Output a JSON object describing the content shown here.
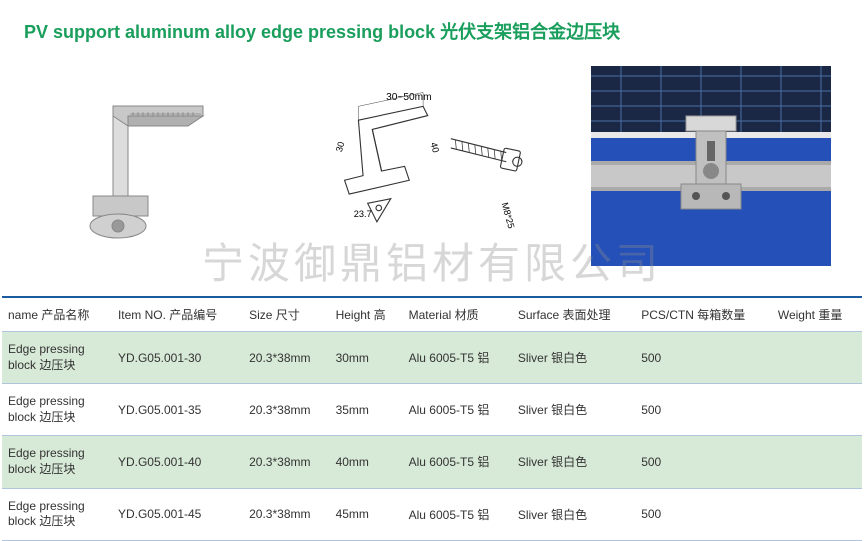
{
  "title": "PV support aluminum alloy edge pressing block  光伏支架铝合金边压块",
  "watermark": "宁波御鼎铝材有限公司",
  "colors": {
    "title_color": "#1a9e5c",
    "header_border": "#1a5c9e",
    "row_border": "#b0c4de",
    "row_odd_bg": "#d7e9d7",
    "row_even_bg": "#ffffff",
    "text_color": "#333333",
    "watermark_color": "rgba(140,140,140,0.35)"
  },
  "table": {
    "columns": [
      "name 产品名称",
      "Item NO. 产品编号",
      "Size 尺寸",
      "Height 高",
      "Material 材质",
      "Surface 表面处理",
      "PCS/CTN 每箱数量",
      "Weight 重量"
    ],
    "rows": [
      {
        "name": "Edge pressing block 边压块",
        "item_no": "YD.G05.001-30",
        "size": "20.3*38mm",
        "height": "30mm",
        "material": "Alu 6005-T5 铝",
        "surface": "Sliver 银白色",
        "pcs": "500",
        "weight": ""
      },
      {
        "name": "Edge pressing block 边压块",
        "item_no": "YD.G05.001-35",
        "size": "20.3*38mm",
        "height": "35mm",
        "material": "Alu 6005-T5 铝",
        "surface": "Sliver 银白色",
        "pcs": "500",
        "weight": ""
      },
      {
        "name": "Edge pressing block 边压块",
        "item_no": "YD.G05.001-40",
        "size": "20.3*38mm",
        "height": "40mm",
        "material": "Alu 6005-T5 铝",
        "surface": "Sliver 银白色",
        "pcs": "500",
        "weight": ""
      },
      {
        "name": "Edge pressing block 边压块",
        "item_no": "YD.G05.001-45",
        "size": "20.3*38mm",
        "height": "45mm",
        "material": "Alu 6005-T5 铝",
        "surface": "Sliver 银白色",
        "pcs": "500",
        "weight": ""
      }
    ]
  },
  "diagram_labels": {
    "top_dim": "30~50mm",
    "side_dim1": "30",
    "side_dim2": "40",
    "base_dim": "23.7",
    "bolt_spec": "M8*25"
  }
}
